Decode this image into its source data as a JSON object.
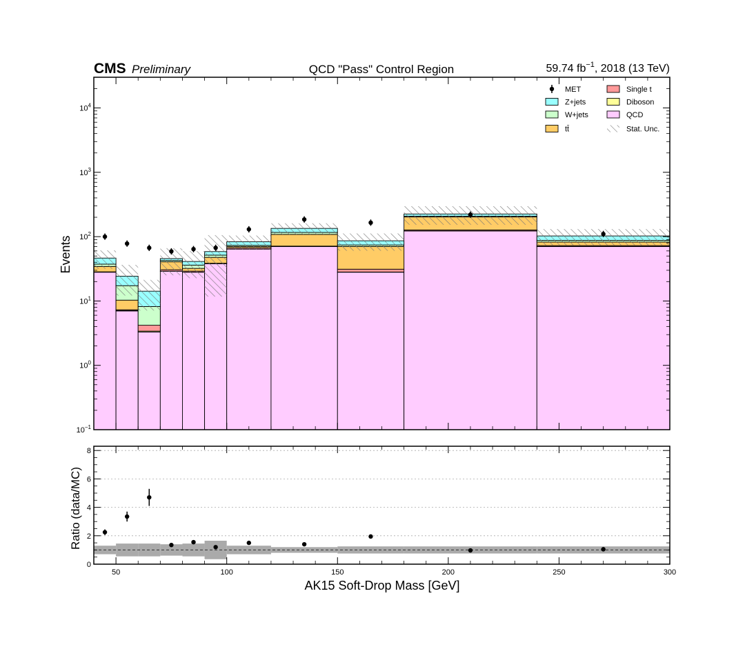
{
  "header": {
    "experiment": "CMS",
    "status": "Preliminary",
    "region_title": "QCD \"Pass\" Control Region",
    "lumi_value": "59.74 fb",
    "lumi_exp": "−1",
    "lumi_rest": ", 2018 (13 TeV)"
  },
  "chart_data": {
    "type": "bar",
    "stacked": true,
    "xlabel": "AK15 Soft-Drop Mass [GeV]",
    "ylabel": "Events",
    "ratio_ylabel": "Ratio (data/MC)",
    "xlim": [
      40,
      300
    ],
    "ylim": [
      0.1,
      30000
    ],
    "yscale": "log",
    "ratio_ylim": [
      0,
      8.3
    ],
    "x_ticks": [
      50,
      100,
      150,
      200,
      250,
      300
    ],
    "y_ticks": [
      {
        "base": "10",
        "exp": "−1",
        "value": 0.1
      },
      {
        "base": "10",
        "exp": "0",
        "value": 1
      },
      {
        "base": "10",
        "exp": "1",
        "value": 10
      },
      {
        "base": "10",
        "exp": "2",
        "value": 100
      },
      {
        "base": "10",
        "exp": "3",
        "value": 1000
      },
      {
        "base": "10",
        "exp": "4",
        "value": 10000
      }
    ],
    "ratio_ticks": [
      0,
      2,
      4,
      6,
      8
    ],
    "legend_position": "top-right",
    "bins": [
      [
        40,
        50
      ],
      [
        50,
        60
      ],
      [
        60,
        70
      ],
      [
        70,
        80
      ],
      [
        80,
        90
      ],
      [
        90,
        100
      ],
      [
        100,
        120
      ],
      [
        120,
        150
      ],
      [
        150,
        180
      ],
      [
        180,
        240
      ],
      [
        240,
        300
      ]
    ],
    "series": [
      {
        "name": "QCD",
        "color": "#ffccff",
        "values": [
          28,
          7,
          3.3,
          29,
          28,
          38,
          64,
          70,
          28,
          122,
          70
        ]
      },
      {
        "name": "Diboson",
        "color": "#ffff99",
        "values": [
          0.1,
          0.1,
          0.1,
          0.1,
          0.1,
          0.1,
          0.2,
          0.3,
          0.2,
          1,
          0.5
        ]
      },
      {
        "name": "Single t",
        "color": "#ff9999",
        "values": [
          0.3,
          0.2,
          0.8,
          1.5,
          1,
          0.5,
          3,
          1,
          3,
          4,
          2
        ]
      },
      {
        "name": "tt̄",
        "color": "#ffcc66",
        "values": [
          6,
          3,
          0,
          10,
          3,
          9,
          3,
          37,
          39,
          75,
          10
        ]
      },
      {
        "name": "W+jets",
        "color": "#ccffcc",
        "values": [
          3,
          7,
          4,
          2,
          4,
          4,
          3,
          8,
          4,
          6,
          5
        ]
      },
      {
        "name": "Z+jets",
        "color": "#99ffff",
        "values": [
          9,
          7,
          6,
          3,
          5,
          7,
          10,
          18,
          12,
          17,
          15
        ]
      }
    ],
    "stat_unc_rel": [
      0.32,
      0.5,
      0.5,
      0.45,
      0.45,
      0.8,
      0.25,
      0.2,
      0.3,
      0.32,
      0.28
    ],
    "data": {
      "name": "MET",
      "x": [
        45,
        55,
        65,
        75,
        85,
        95,
        110,
        135,
        165,
        210,
        270
      ],
      "y": [
        100,
        78,
        67,
        59,
        64,
        67,
        130,
        185,
        165,
        220,
        110
      ]
    },
    "ratio": {
      "x": [
        45,
        55,
        65,
        75,
        85,
        95,
        110,
        135,
        165,
        210,
        270
      ],
      "y": [
        2.25,
        3.35,
        4.7,
        1.35,
        1.55,
        1.2,
        1.5,
        1.4,
        1.95,
        0.97,
        1.05
      ],
      "err": [
        0.2,
        0.35,
        0.6,
        0.12,
        0.15,
        0.12,
        0.12,
        0.1,
        0.12,
        0.06,
        0.08
      ],
      "unc_band": [
        0.3,
        0.45,
        0.45,
        0.4,
        0.45,
        0.65,
        0.3,
        0.2,
        0.25,
        0.25,
        0.25
      ]
    },
    "legend": [
      {
        "label": "MET",
        "kind": "marker"
      },
      {
        "label": "Single t",
        "kind": "box",
        "color": "#ff9999"
      },
      {
        "label": "Z+jets",
        "kind": "box",
        "color": "#99ffff"
      },
      {
        "label": "Diboson",
        "kind": "box",
        "color": "#ffff99"
      },
      {
        "label": "W+jets",
        "kind": "box",
        "color": "#ccffcc"
      },
      {
        "label": "QCD",
        "kind": "box",
        "color": "#ffccff"
      },
      {
        "label": "tt̄",
        "kind": "box",
        "color": "#ffcc66"
      },
      {
        "label": "Stat. Unc.",
        "kind": "hatch"
      }
    ]
  }
}
